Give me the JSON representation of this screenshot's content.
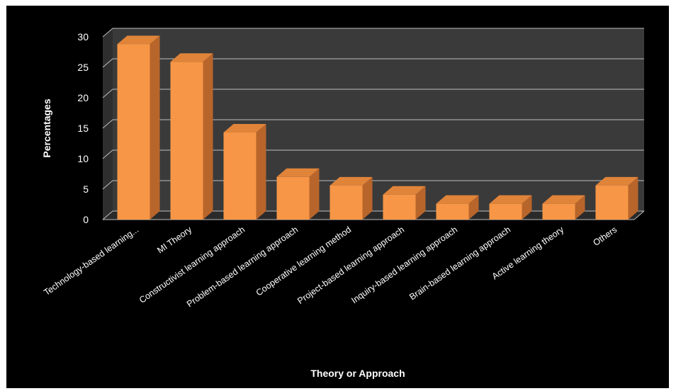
{
  "chart_data": {
    "type": "bar",
    "style": "3d-column",
    "categories": [
      "Technology-based learning...",
      "MI Theory",
      "Constructivist learning approach",
      "Problem-based learning approach",
      "Cooperative learning method",
      "Project-based learning approach",
      "Inquiry-based learning approach",
      "Brain-based learning approach",
      "Active learning theory",
      "Others"
    ],
    "values": [
      28.8,
      25.9,
      14.3,
      7.0,
      5.6,
      4.1,
      2.6,
      2.6,
      2.6,
      5.6
    ],
    "title": "",
    "xlabel": "Theory or Approach",
    "ylabel": "Percentages",
    "ylim": [
      0,
      30
    ],
    "yticks": [
      "0",
      "5",
      "10",
      "15",
      "20",
      "25",
      "30"
    ],
    "grid": true,
    "legend": "none",
    "colors": {
      "background": "#000000",
      "wall": "#3a3a3a",
      "floor": "#2a2a2a",
      "gridline": "#bfbfbf",
      "bar_front": "#F79646",
      "bar_top": "#E0843A",
      "bar_side": "#B8652B",
      "text": "#ffffff"
    }
  }
}
